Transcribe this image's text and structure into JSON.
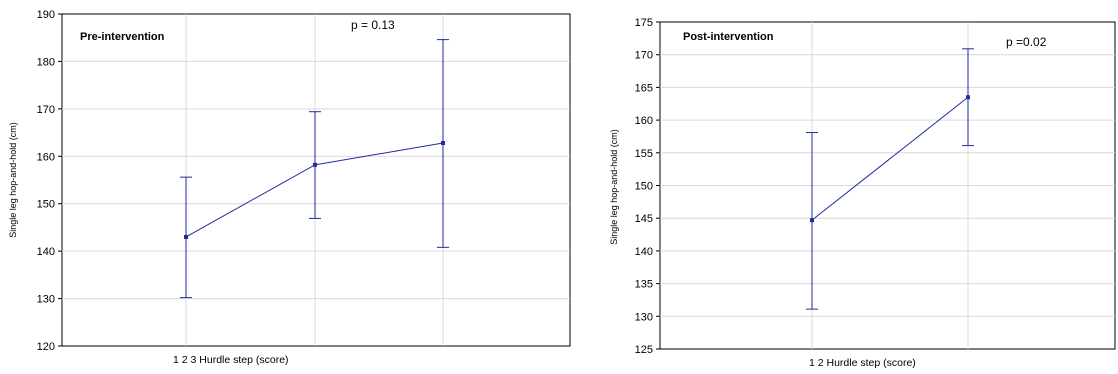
{
  "chart_data": [
    {
      "type": "line",
      "title": "Pre-intervention",
      "annotation": "p = 0.13",
      "xlabel": "1 2 3 Hurdle step (score)",
      "ylabel": "Single leg hop-and-hold (cm)",
      "categories": [
        "1",
        "2",
        "3"
      ],
      "values": [
        143,
        158.2,
        162.8
      ],
      "error_low": [
        130.2,
        146.9,
        140.8
      ],
      "error_high": [
        155.6,
        169.4,
        184.6
      ],
      "ylim": [
        120,
        190
      ],
      "yticks": [
        "120",
        "130",
        "140",
        "150",
        "160",
        "170",
        "180",
        "190"
      ],
      "grid": true,
      "color": "#1f2d9c"
    },
    {
      "type": "line",
      "title": "Post-intervention",
      "annotation": "p =0.02",
      "xlabel": "1 2 Hurdle step (score)",
      "ylabel": "Single leg hop-and-hold (cm)",
      "categories": [
        "1",
        "2"
      ],
      "values": [
        144.7,
        163.5
      ],
      "error_low": [
        131.1,
        156.1
      ],
      "error_high": [
        158.1,
        170.9
      ],
      "ylim": [
        125,
        175
      ],
      "yticks": [
        "125",
        "130",
        "135",
        "140",
        "145",
        "150",
        "155",
        "160",
        "165",
        "170",
        "175"
      ],
      "grid": true,
      "color": "#1f2d9c"
    }
  ]
}
